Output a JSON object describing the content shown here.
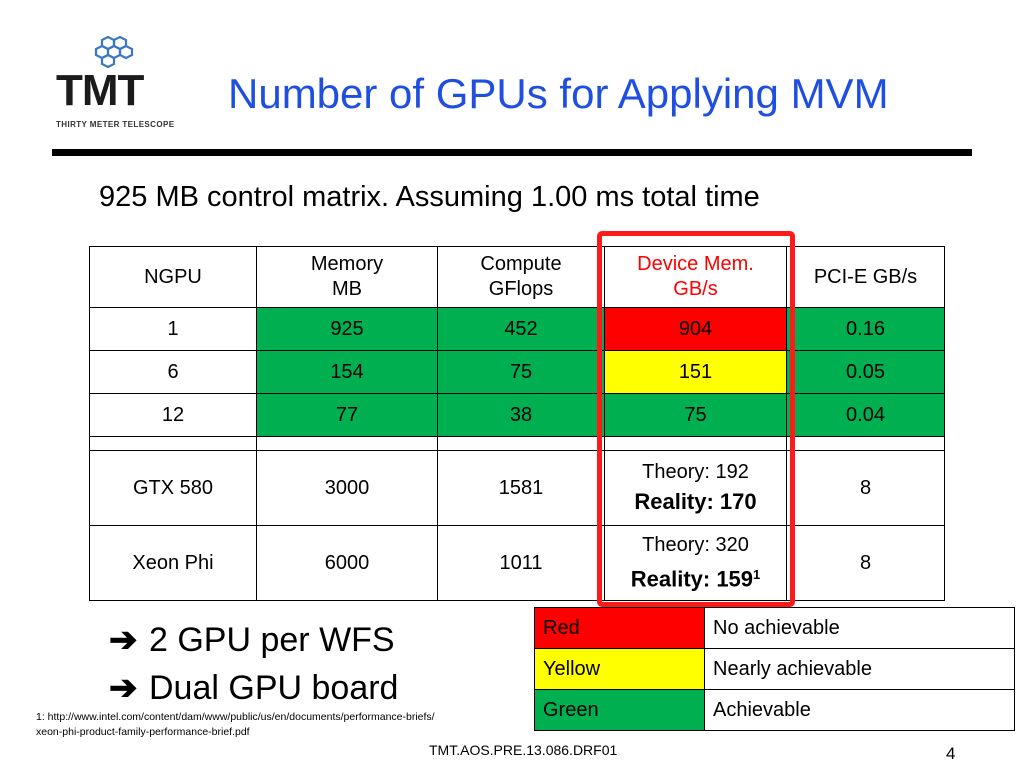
{
  "logo": {
    "name": "TMT",
    "tagline": "THIRTY METER TELESCOPE"
  },
  "title": "Number of GPUs for Applying MVM",
  "subtitle": "925 MB control matrix. Assuming 1.00 ms total time",
  "table": {
    "headers": {
      "ngpu": "NGPU",
      "memory_l1": "Memory",
      "memory_l2": "MB",
      "compute_l1": "Compute",
      "compute_l2": "GFlops",
      "devmem_l1": "Device Mem.",
      "devmem_l2": "GB/s",
      "pcie": "PCI-E  GB/s"
    },
    "rows": [
      {
        "ngpu": "1",
        "memory": "925",
        "compute": "452",
        "devmem": "904",
        "pcie": "0.16",
        "devmem_status": "red"
      },
      {
        "ngpu": "6",
        "memory": "154",
        "compute": "75",
        "devmem": "151",
        "pcie": "0.05",
        "devmem_status": "yellow"
      },
      {
        "ngpu": "12",
        "memory": "77",
        "compute": "38",
        "devmem": "75",
        "pcie": "0.04",
        "devmem_status": "green"
      }
    ],
    "hardware": [
      {
        "name": "GTX 580",
        "memory": "3000",
        "compute": "1581",
        "theory": "Theory: 192",
        "reality": "Reality: 170",
        "pcie": "8"
      },
      {
        "name": "Xeon Phi",
        "memory": "6000",
        "compute": "1011",
        "theory": "Theory: 320",
        "reality": "Reality: 159",
        "reality_sup": "1",
        "pcie": "8"
      }
    ]
  },
  "bullets": {
    "arrow": "➔",
    "line1": "2 GPU per WFS",
    "line2": "Dual GPU board"
  },
  "legend": [
    {
      "color": "Red",
      "meaning": "No achievable"
    },
    {
      "color": "Yellow",
      "meaning": "Nearly achievable"
    },
    {
      "color": "Green",
      "meaning": "Achievable"
    }
  ],
  "colors": {
    "title": "#1f4fe0",
    "red": "#ff0000",
    "yellow": "#ffff00",
    "green": "#00b050",
    "highlight_box": "#ff1a1a"
  },
  "footnote": "1: http://www.intel.com/content/dam/www/public/us/en/documents/performance-briefs/xeon-phi-product-family-performance-brief.pdf",
  "footer_code": "TMT.AOS.PRE.13.086.DRF01",
  "page_number": "4"
}
